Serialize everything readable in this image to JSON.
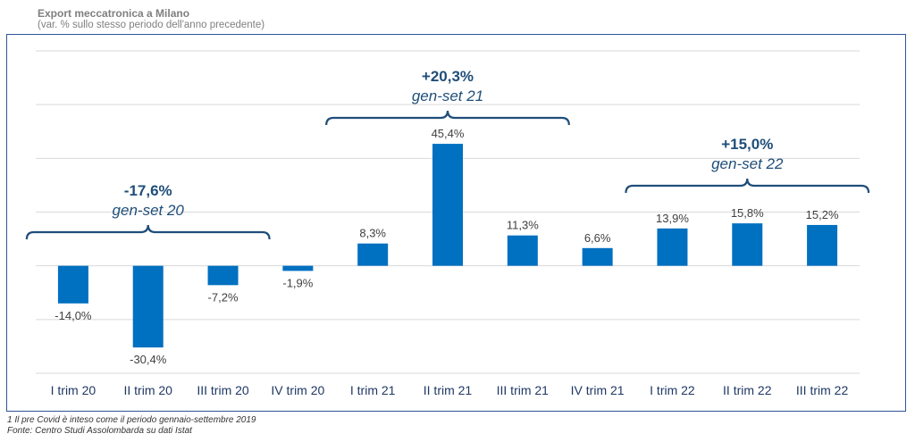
{
  "header": {
    "title": "Export meccatronica a Milano",
    "subtitle": "(var. % sullo stesso periodo dell'anno precedente)"
  },
  "colors": {
    "bar": "#0070c0",
    "brace": "#1f4e79",
    "annotation": "#1f4e79",
    "frame": "#2f5597",
    "grid": "#d9d9d9"
  },
  "chart_data": {
    "type": "bar",
    "categories": [
      "I trim 20",
      "II trim 20",
      "III trim 20",
      "IV trim 20",
      "I trim 21",
      "II trim 21",
      "III trim 21",
      "IV trim 21",
      "I trim 22",
      "II trim 22",
      "III trim 22"
    ],
    "values": [
      -14.0,
      -30.4,
      -7.2,
      -1.9,
      8.3,
      45.4,
      11.3,
      6.6,
      13.9,
      15.8,
      15.2
    ],
    "value_labels": [
      "-14,0%",
      "-30,4%",
      "-7,2%",
      "-1,9%",
      "8,3%",
      "45,4%",
      "11,3%",
      "6,6%",
      "13,9%",
      "15,8%",
      "15,2%"
    ],
    "ylim": [
      -40,
      80
    ],
    "grid": true,
    "annotations": [
      {
        "value": "-17,6%",
        "period": "gen-set 20",
        "from": 0,
        "to": 2
      },
      {
        "value": "+20,3%",
        "period": "gen-set 21",
        "from": 4,
        "to": 6
      },
      {
        "value": "+15,0%",
        "period": "gen-set 22",
        "from": 8,
        "to": 10
      }
    ]
  },
  "footnotes": {
    "note": "1 Il pre Covid è inteso come il periodo gennaio-settembre 2019",
    "source": "Fonte: Centro Studi Assolombarda su dati Istat"
  }
}
